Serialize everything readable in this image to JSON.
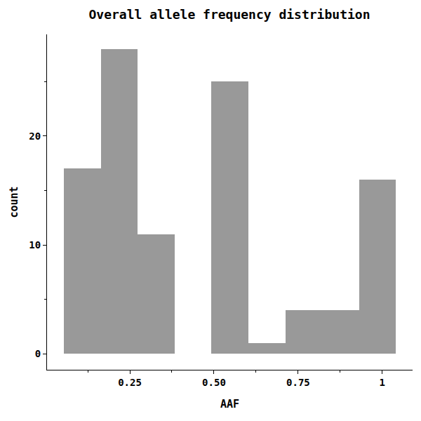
{
  "chart_data": {
    "type": "histogram",
    "title": "Overall allele frequency distribution",
    "x_label": "AAF",
    "y_label": "count",
    "bins": [
      0.054,
      0.164,
      0.273,
      0.383,
      0.492,
      0.602,
      0.712,
      0.821,
      0.931,
      1.04
    ],
    "values": [
      17,
      28,
      11,
      0,
      25,
      1,
      4,
      4,
      16
    ],
    "color": "#999999",
    "xlim": [
      0.004,
      1.09
    ],
    "xticks": [
      0.25,
      {
        "value": 0.5,
        "label": "0.50"
      },
      0.75,
      1
    ],
    "ylim": [
      -1.48,
      29.35
    ],
    "yticks": [
      0,
      10,
      20
    ],
    "grid": false
  }
}
